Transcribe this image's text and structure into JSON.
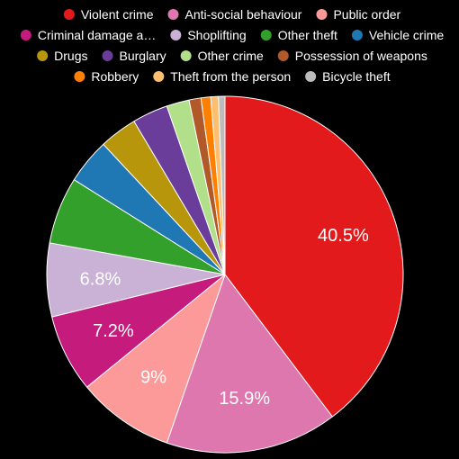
{
  "chart_data": {
    "type": "pie",
    "title": "",
    "legend_position": "top",
    "background_color": "#000000",
    "slice_border_color": "#ffffff",
    "label_color": "#ffffff",
    "series": [
      {
        "name": "Violent crime",
        "value": 40.5,
        "label": "40.5%",
        "color": "#e31a1c"
      },
      {
        "name": "Anti-social behaviour",
        "value": 15.9,
        "label": "15.9%",
        "color": "#de77ae"
      },
      {
        "name": "Public order",
        "value": 9.0,
        "label": "9%",
        "color": "#fb9a99"
      },
      {
        "name": "Criminal damage a…",
        "value": 7.2,
        "label": "7.2%",
        "color": "#c51b7d"
      },
      {
        "name": "Shoplifting",
        "value": 6.8,
        "label": "6.8%",
        "color": "#c9b2d6"
      },
      {
        "name": "Other theft",
        "value": 6.2,
        "label": "",
        "color": "#33a02c"
      },
      {
        "name": "Vehicle crime",
        "value": 4.2,
        "label": "",
        "color": "#1f78b4"
      },
      {
        "name": "Drugs",
        "value": 3.5,
        "label": "",
        "color": "#b8960b"
      },
      {
        "name": "Burglary",
        "value": 3.3,
        "label": "",
        "color": "#6a3d9a"
      },
      {
        "name": "Other crime",
        "value": 2.1,
        "label": "",
        "color": "#b2df8a"
      },
      {
        "name": "Possession of weapons",
        "value": 1.1,
        "label": "",
        "color": "#b15928"
      },
      {
        "name": "Robbery",
        "value": 0.9,
        "label": "",
        "color": "#ff7f00"
      },
      {
        "name": "Theft from the person",
        "value": 0.7,
        "label": "",
        "color": "#fdbf6f"
      },
      {
        "name": "Bicycle theft",
        "value": 0.6,
        "label": "",
        "color": "#bcbcbc"
      }
    ]
  }
}
